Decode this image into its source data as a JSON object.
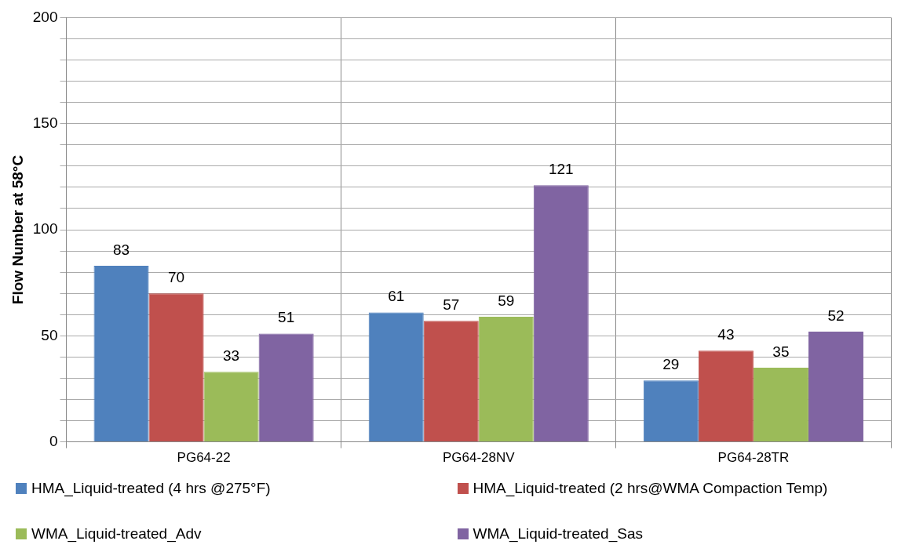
{
  "chart_data": {
    "type": "bar",
    "ylabel": "Flow Number at 58°C",
    "categories": [
      "PG64-22",
      "PG64-28NV",
      "PG64-28TR"
    ],
    "series": [
      {
        "name": "HMA_Liquid-treated (4 hrs @275°F)",
        "color": "#4f81bd",
        "values": [
          83,
          61,
          29
        ]
      },
      {
        "name": "HMA_Liquid-treated (2 hrs@WMA Compaction Temp)",
        "color": "#c0504d",
        "values": [
          70,
          57,
          43
        ]
      },
      {
        "name": "WMA_Liquid-treated_Adv",
        "color": "#9bbb59",
        "values": [
          33,
          59,
          35
        ]
      },
      {
        "name": "WMA_Liquid-treated_Sas",
        "color": "#8064a2",
        "values": [
          51,
          121,
          52
        ]
      }
    ],
    "ylim": [
      0,
      200
    ],
    "yticks": [
      0,
      {
        "value": 10,
        "label": null
      },
      {
        "value": 20,
        "label": null
      },
      {
        "value": 30,
        "label": null
      },
      {
        "value": 40,
        "label": null
      },
      50,
      {
        "value": 60,
        "label": null
      },
      {
        "value": 70,
        "label": null
      },
      {
        "value": 80,
        "label": null
      },
      {
        "value": 90,
        "label": null
      },
      100,
      {
        "value": 110,
        "label": null
      },
      {
        "value": 120,
        "label": null
      },
      {
        "value": 130,
        "label": null
      },
      {
        "value": 140,
        "label": null
      },
      150,
      {
        "value": 160,
        "label": null
      },
      {
        "value": 170,
        "label": null
      },
      {
        "value": 180,
        "label": null
      },
      {
        "value": 190,
        "label": null
      },
      200
    ],
    "grid": true,
    "legend": "bottom",
    "data_labels": true
  }
}
